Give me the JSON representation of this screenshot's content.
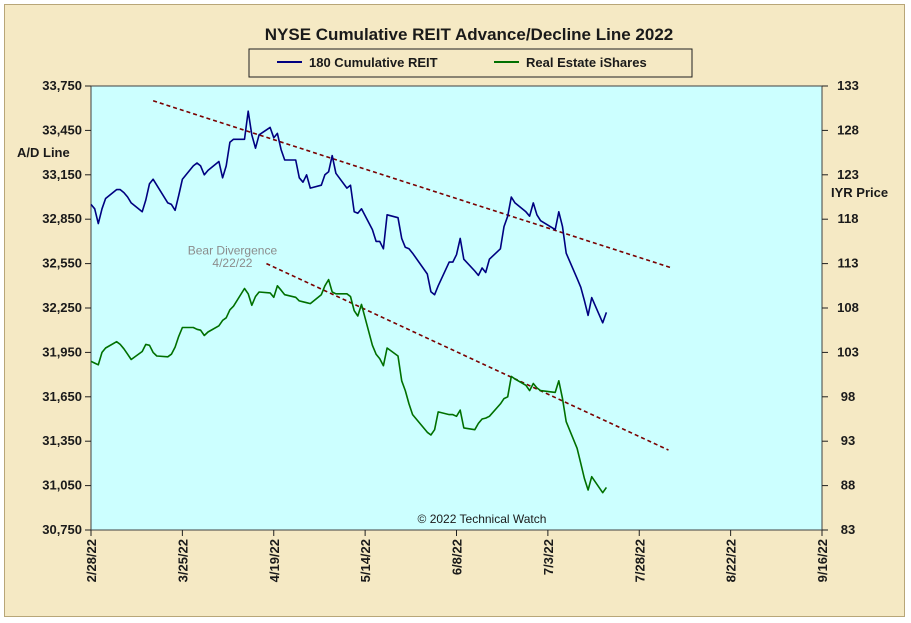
{
  "chart_data": {
    "type": "line",
    "title": "NYSE Cumulative  REIT Advance/Decline  Line 2022",
    "ylabel": "A/D Line",
    "ylabel_right": "IYR Price",
    "ylim": [
      30750,
      33750
    ],
    "ylim_right": [
      83,
      133
    ],
    "y_ticks": [
      "33,750",
      "33,450",
      "33,150",
      "32,850",
      "32,550",
      "32,250",
      "31,950",
      "31,650",
      "31,350",
      "31,050",
      "30,750"
    ],
    "y_ticks_right": [
      "133",
      "128",
      "123",
      "118",
      "113",
      "108",
      "103",
      "98",
      "93",
      "88",
      "83"
    ],
    "xlim": [
      "2022-02-28",
      "2022-09-16"
    ],
    "x_ticks": [
      "2/28/22",
      "3/25/22",
      "4/19/22",
      "5/14/22",
      "6/8/22",
      "7/3/22",
      "7/28/22",
      "8/22/22",
      "9/16/22"
    ],
    "grid": false,
    "legend_position": "top-center",
    "series": [
      {
        "name": "180 Cumulative REIT",
        "axis": "left",
        "color": "#000080",
        "points": [
          [
            "2022-02-28",
            32950
          ],
          [
            "2022-03-01",
            32920
          ],
          [
            "2022-03-02",
            32820
          ],
          [
            "2022-03-03",
            32920
          ],
          [
            "2022-03-04",
            32990
          ],
          [
            "2022-03-07",
            33050
          ],
          [
            "2022-03-08",
            33050
          ],
          [
            "2022-03-09",
            33030
          ],
          [
            "2022-03-10",
            33000
          ],
          [
            "2022-03-11",
            32960
          ],
          [
            "2022-03-14",
            32900
          ],
          [
            "2022-03-15",
            32980
          ],
          [
            "2022-03-16",
            33090
          ],
          [
            "2022-03-17",
            33120
          ],
          [
            "2022-03-18",
            33080
          ],
          [
            "2022-03-21",
            32960
          ],
          [
            "2022-03-22",
            32950
          ],
          [
            "2022-03-23",
            32910
          ],
          [
            "2022-03-24",
            33010
          ],
          [
            "2022-03-25",
            33120
          ],
          [
            "2022-03-28",
            33210
          ],
          [
            "2022-03-29",
            33230
          ],
          [
            "2022-03-30",
            33210
          ],
          [
            "2022-03-31",
            33150
          ],
          [
            "2022-04-01",
            33180
          ],
          [
            "2022-04-04",
            33240
          ],
          [
            "2022-04-05",
            33130
          ],
          [
            "2022-04-06",
            33210
          ],
          [
            "2022-04-07",
            33370
          ],
          [
            "2022-04-08",
            33390
          ],
          [
            "2022-04-11",
            33390
          ],
          [
            "2022-04-12",
            33580
          ],
          [
            "2022-04-13",
            33420
          ],
          [
            "2022-04-14",
            33330
          ],
          [
            "2022-04-15",
            33420
          ],
          [
            "2022-04-18",
            33470
          ],
          [
            "2022-04-19",
            33400
          ],
          [
            "2022-04-20",
            33430
          ],
          [
            "2022-04-21",
            33320
          ],
          [
            "2022-04-22",
            33250
          ],
          [
            "2022-04-25",
            33250
          ],
          [
            "2022-04-26",
            33130
          ],
          [
            "2022-04-27",
            33100
          ],
          [
            "2022-04-28",
            33150
          ],
          [
            "2022-04-29",
            33060
          ],
          [
            "2022-05-02",
            33080
          ],
          [
            "2022-05-03",
            33150
          ],
          [
            "2022-05-04",
            33170
          ],
          [
            "2022-05-05",
            33280
          ],
          [
            "2022-05-06",
            33160
          ],
          [
            "2022-05-09",
            33060
          ],
          [
            "2022-05-10",
            33080
          ],
          [
            "2022-05-11",
            32900
          ],
          [
            "2022-05-12",
            32890
          ],
          [
            "2022-05-13",
            32920
          ],
          [
            "2022-05-16",
            32780
          ],
          [
            "2022-05-17",
            32700
          ],
          [
            "2022-05-18",
            32700
          ],
          [
            "2022-05-19",
            32650
          ],
          [
            "2022-05-20",
            32880
          ],
          [
            "2022-05-23",
            32860
          ],
          [
            "2022-05-24",
            32720
          ],
          [
            "2022-05-25",
            32660
          ],
          [
            "2022-05-26",
            32650
          ],
          [
            "2022-05-27",
            32620
          ],
          [
            "2022-05-31",
            32480
          ],
          [
            "2022-06-01",
            32360
          ],
          [
            "2022-06-02",
            32340
          ],
          [
            "2022-06-03",
            32400
          ],
          [
            "2022-06-06",
            32560
          ],
          [
            "2022-06-07",
            32560
          ],
          [
            "2022-06-08",
            32610
          ],
          [
            "2022-06-09",
            32720
          ],
          [
            "2022-06-10",
            32580
          ],
          [
            "2022-06-13",
            32500
          ],
          [
            "2022-06-14",
            32470
          ],
          [
            "2022-06-15",
            32520
          ],
          [
            "2022-06-16",
            32490
          ],
          [
            "2022-06-17",
            32580
          ],
          [
            "2022-06-20",
            32650
          ],
          [
            "2022-06-21",
            32800
          ],
          [
            "2022-06-22",
            32870
          ],
          [
            "2022-06-23",
            33000
          ],
          [
            "2022-06-24",
            32960
          ],
          [
            "2022-06-27",
            32900
          ],
          [
            "2022-06-28",
            32870
          ],
          [
            "2022-06-29",
            32960
          ],
          [
            "2022-06-30",
            32880
          ],
          [
            "2022-07-01",
            32840
          ],
          [
            "2022-07-05",
            32780
          ],
          [
            "2022-07-06",
            32900
          ],
          [
            "2022-07-07",
            32800
          ],
          [
            "2022-07-08",
            32620
          ],
          [
            "2022-07-11",
            32450
          ],
          [
            "2022-07-12",
            32390
          ],
          [
            "2022-07-13",
            32300
          ],
          [
            "2022-07-14",
            32200
          ],
          [
            "2022-07-15",
            32320
          ],
          [
            "2022-07-18",
            32150
          ],
          [
            "2022-07-19",
            32220
          ]
        ]
      },
      {
        "name": "Real Estate iShares",
        "axis": "right",
        "color": "#007000",
        "points": [
          [
            "2022-02-28",
            102.0
          ],
          [
            "2022-03-01",
            101.8
          ],
          [
            "2022-03-02",
            101.6
          ],
          [
            "2022-03-03",
            103.0
          ],
          [
            "2022-03-04",
            103.5
          ],
          [
            "2022-03-07",
            104.2
          ],
          [
            "2022-03-08",
            103.9
          ],
          [
            "2022-03-09",
            103.4
          ],
          [
            "2022-03-10",
            102.8
          ],
          [
            "2022-03-11",
            102.2
          ],
          [
            "2022-03-14",
            103.1
          ],
          [
            "2022-03-15",
            103.9
          ],
          [
            "2022-03-16",
            103.8
          ],
          [
            "2022-03-17",
            103.0
          ],
          [
            "2022-03-18",
            102.6
          ],
          [
            "2022-03-21",
            102.5
          ],
          [
            "2022-03-22",
            102.8
          ],
          [
            "2022-03-23",
            103.6
          ],
          [
            "2022-03-24",
            104.8
          ],
          [
            "2022-03-25",
            105.8
          ],
          [
            "2022-03-28",
            105.8
          ],
          [
            "2022-03-29",
            105.6
          ],
          [
            "2022-03-30",
            105.5
          ],
          [
            "2022-03-31",
            104.9
          ],
          [
            "2022-04-01",
            105.3
          ],
          [
            "2022-04-04",
            106.0
          ],
          [
            "2022-04-05",
            106.6
          ],
          [
            "2022-04-06",
            106.9
          ],
          [
            "2022-04-07",
            107.8
          ],
          [
            "2022-04-08",
            108.2
          ],
          [
            "2022-04-11",
            110.2
          ],
          [
            "2022-04-12",
            109.6
          ],
          [
            "2022-04-13",
            108.3
          ],
          [
            "2022-04-14",
            109.3
          ],
          [
            "2022-04-15",
            109.8
          ],
          [
            "2022-04-18",
            109.7
          ],
          [
            "2022-04-19",
            109.2
          ],
          [
            "2022-04-20",
            110.5
          ],
          [
            "2022-04-21",
            110.0
          ],
          [
            "2022-04-22",
            109.5
          ],
          [
            "2022-04-25",
            109.2
          ],
          [
            "2022-04-26",
            108.8
          ],
          [
            "2022-04-27",
            108.7
          ],
          [
            "2022-04-28",
            108.6
          ],
          [
            "2022-04-29",
            108.5
          ],
          [
            "2022-05-02",
            109.5
          ],
          [
            "2022-05-03",
            110.5
          ],
          [
            "2022-05-04",
            111.2
          ],
          [
            "2022-05-05",
            109.8
          ],
          [
            "2022-05-06",
            109.6
          ],
          [
            "2022-05-09",
            109.6
          ],
          [
            "2022-05-10",
            109.3
          ],
          [
            "2022-05-11",
            107.7
          ],
          [
            "2022-05-12",
            107.1
          ],
          [
            "2022-05-13",
            108.4
          ],
          [
            "2022-05-16",
            103.8
          ],
          [
            "2022-05-17",
            102.8
          ],
          [
            "2022-05-18",
            102.3
          ],
          [
            "2022-05-19",
            101.5
          ],
          [
            "2022-05-20",
            103.5
          ],
          [
            "2022-05-23",
            102.6
          ],
          [
            "2022-05-24",
            99.8
          ],
          [
            "2022-05-25",
            98.7
          ],
          [
            "2022-05-26",
            97.2
          ],
          [
            "2022-05-27",
            96.0
          ],
          [
            "2022-05-31",
            94.0
          ],
          [
            "2022-06-01",
            93.7
          ],
          [
            "2022-06-02",
            94.3
          ],
          [
            "2022-06-03",
            96.3
          ],
          [
            "2022-06-06",
            96.0
          ],
          [
            "2022-06-07",
            96.0
          ],
          [
            "2022-06-08",
            95.8
          ],
          [
            "2022-06-09",
            96.5
          ],
          [
            "2022-06-10",
            94.5
          ],
          [
            "2022-06-13",
            94.3
          ],
          [
            "2022-06-14",
            95.0
          ],
          [
            "2022-06-15",
            95.5
          ],
          [
            "2022-06-16",
            95.6
          ],
          [
            "2022-06-17",
            95.8
          ],
          [
            "2022-06-20",
            97.2
          ],
          [
            "2022-06-21",
            97.8
          ],
          [
            "2022-06-22",
            98.0
          ],
          [
            "2022-06-23",
            100.3
          ],
          [
            "2022-06-24",
            100.0
          ],
          [
            "2022-06-27",
            99.3
          ],
          [
            "2022-06-28",
            98.7
          ],
          [
            "2022-06-29",
            99.5
          ],
          [
            "2022-06-30",
            99.0
          ],
          [
            "2022-07-01",
            98.7
          ],
          [
            "2022-07-05",
            98.5
          ],
          [
            "2022-07-06",
            99.8
          ],
          [
            "2022-07-07",
            97.8
          ],
          [
            "2022-07-08",
            95.2
          ],
          [
            "2022-07-11",
            92.2
          ],
          [
            "2022-07-12",
            90.5
          ],
          [
            "2022-07-13",
            88.8
          ],
          [
            "2022-07-14",
            87.5
          ],
          [
            "2022-07-15",
            89.0
          ],
          [
            "2022-07-18",
            87.2
          ],
          [
            "2022-07-19",
            87.8
          ]
        ]
      }
    ],
    "trendlines": [
      {
        "axis": "left",
        "color": "#7a0000",
        "from": [
          "2022-03-17",
          33650
        ],
        "to": [
          "2022-08-06",
          32520
        ]
      },
      {
        "axis": "right",
        "color": "#7a0000",
        "from": [
          "2022-04-17",
          113.0
        ],
        "to": [
          "2022-08-05",
          92.0
        ]
      }
    ],
    "annotations": [
      {
        "text": "Bear Divergence",
        "x": "2022-04-17",
        "y_right": 114.0,
        "color": "#8c8c8c"
      },
      {
        "text": "4/22/22",
        "x": "2022-04-17",
        "y_right": 112.6,
        "color": "#8c8c8c"
      }
    ],
    "copyright": "© 2022 Technical Watch"
  }
}
